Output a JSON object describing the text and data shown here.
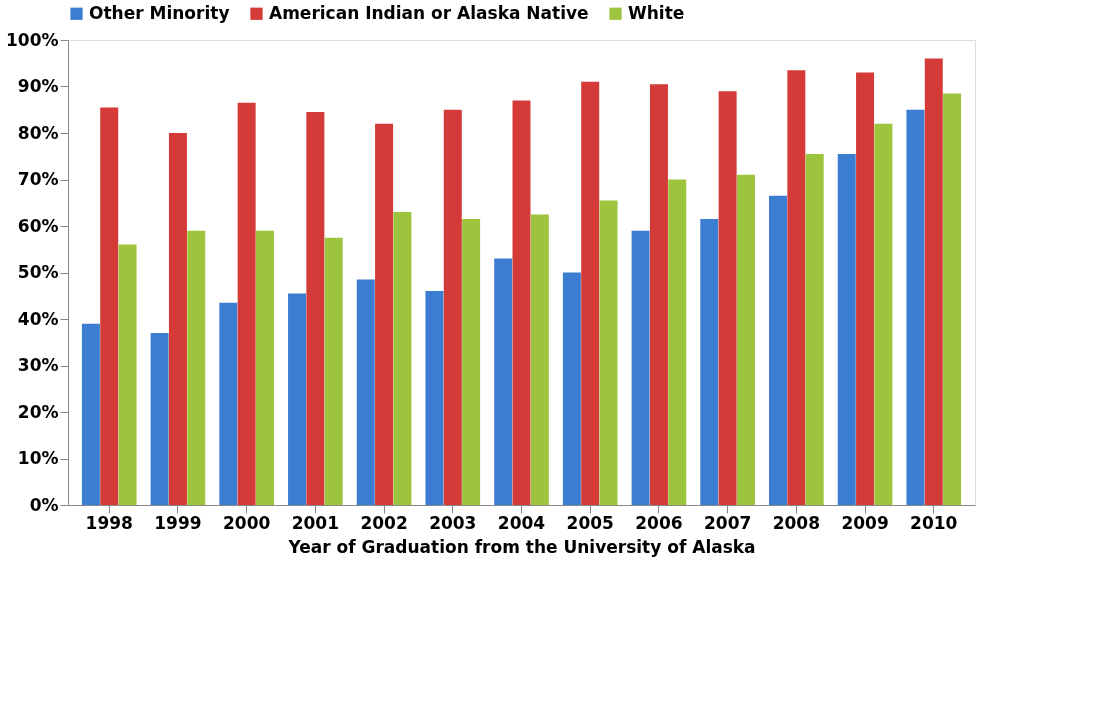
{
  "chart_data": {
    "type": "bar",
    "xlabel": "Year of Graduation from the University of Alaska",
    "categories": [
      "1998",
      "1999",
      "2000",
      "2001",
      "2002",
      "2003",
      "2004",
      "2005",
      "2006",
      "2007",
      "2008",
      "2009",
      "2010"
    ],
    "series": [
      {
        "name": "Other Minority",
        "color": "#3b7dd0",
        "values": [
          39,
          37,
          43.5,
          45.5,
          48.5,
          46,
          53,
          50,
          59,
          61.5,
          66.5,
          75.5,
          85
        ]
      },
      {
        "name": "American Indian or Alaska Native",
        "color": "#d43a37",
        "values": [
          85.5,
          80,
          86.5,
          84.5,
          82,
          85,
          87,
          91,
          90.5,
          89,
          93.5,
          93,
          96
        ]
      },
      {
        "name": "White",
        "color": "#9cc43c",
        "values": [
          56,
          59,
          59,
          57.5,
          63,
          61.5,
          62.5,
          65.5,
          70,
          71,
          75.5,
          82,
          88.5
        ]
      }
    ],
    "ylim": [
      0,
      100
    ],
    "yticks": [
      {
        "value": 0,
        "label": "0%"
      },
      {
        "value": 10,
        "label": "10%"
      },
      {
        "value": 20,
        "label": "20%"
      },
      {
        "value": 30,
        "label": "30%"
      },
      {
        "value": 40,
        "label": "40%"
      },
      {
        "value": 50,
        "label": "50%"
      },
      {
        "value": 60,
        "label": "60%"
      },
      {
        "value": 70,
        "label": "70%"
      },
      {
        "value": 80,
        "label": "80%"
      },
      {
        "value": 90,
        "label": "90%"
      },
      {
        "value": 100,
        "label": "100%"
      }
    ],
    "grid": false,
    "legend": "top"
  }
}
